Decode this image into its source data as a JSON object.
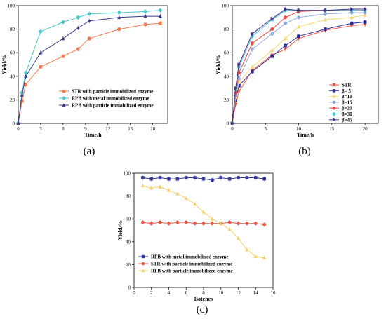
{
  "chart_data": [
    {
      "panel_label": "(a)",
      "type": "line",
      "xlabel": "Time/h",
      "ylabel": "Yield/%",
      "xlim": [
        0,
        20
      ],
      "ylim": [
        0,
        100
      ],
      "xticks": [
        "0",
        "3",
        "6",
        "9",
        "12",
        "15",
        "18"
      ],
      "yticks": [
        "0",
        "20",
        "40",
        "60",
        "80",
        "100"
      ],
      "legend_position": "bottom-right",
      "series": [
        {
          "name": "STR with particle immobilized enzyme",
          "color": "#f47a4f",
          "marker": "square",
          "x": [
            0,
            0.5,
            1,
            3,
            6,
            8,
            9.5,
            13.5,
            17,
            19
          ],
          "y": [
            0,
            19,
            33,
            48,
            57,
            63,
            72,
            80,
            84,
            85
          ]
        },
        {
          "name": "RPB with metal immobilized enzyme",
          "color": "#48c8c8",
          "marker": "circle",
          "x": [
            0,
            0.5,
            1,
            3,
            6,
            8,
            9.5,
            13.5,
            17,
            19
          ],
          "y": [
            0,
            26,
            43,
            78,
            86,
            90,
            93,
            94,
            95,
            96
          ]
        },
        {
          "name": "RPB with particle immobilized enzyme",
          "color": "#3a3a8c",
          "marker": "triangle",
          "x": [
            0,
            0.5,
            1,
            3,
            6,
            8,
            9.5,
            13.5,
            17,
            19
          ],
          "y": [
            0,
            24,
            40,
            60,
            72,
            81,
            87,
            90,
            91,
            91
          ]
        }
      ]
    },
    {
      "panel_label": "(b)",
      "type": "line",
      "xlabel": "Time/h",
      "ylabel": "Yield/%",
      "xlim": [
        0,
        22
      ],
      "ylim": [
        0,
        100
      ],
      "xticks": [
        "0",
        "5",
        "10",
        "15",
        "20"
      ],
      "yticks": [
        "0",
        "20",
        "40",
        "60",
        "80",
        "100"
      ],
      "legend_position": "bottom-right",
      "series": [
        {
          "name": "STR",
          "color": "#f05a46",
          "marker": "triangle-down",
          "x": [
            0,
            0.5,
            1,
            3,
            6,
            8,
            10,
            14,
            18,
            20
          ],
          "y": [
            0,
            16,
            27,
            45,
            58,
            63,
            72,
            79,
            83,
            84
          ]
        },
        {
          "name": "β= 5",
          "color": "#2b2b9a",
          "marker": "square",
          "x": [
            0,
            0.5,
            1,
            3,
            6,
            8,
            10,
            14,
            18,
            20
          ],
          "y": [
            0,
            20,
            32,
            44,
            57,
            66,
            74,
            80,
            85,
            86
          ]
        },
        {
          "name": "β=10",
          "color": "#f5d76e",
          "marker": "triangle",
          "x": [
            0,
            0.5,
            1,
            3,
            6,
            8,
            10,
            14,
            18,
            20
          ],
          "y": [
            0,
            22,
            35,
            48,
            62,
            72,
            82,
            88,
            90,
            92
          ]
        },
        {
          "name": "β=15",
          "color": "#8fa8e0",
          "marker": "circle",
          "x": [
            0,
            0.5,
            1,
            3,
            6,
            8,
            10,
            14,
            18,
            20
          ],
          "y": [
            0,
            24,
            38,
            63,
            76,
            85,
            90,
            93,
            94,
            94
          ]
        },
        {
          "name": "β=20",
          "color": "#e8443a",
          "marker": "circle",
          "x": [
            0,
            0.5,
            1,
            3,
            6,
            8,
            10,
            14,
            18,
            20
          ],
          "y": [
            0,
            26,
            43,
            68,
            80,
            90,
            95,
            96,
            96,
            96
          ]
        },
        {
          "name": "β=30",
          "color": "#3fc0d0",
          "marker": "circle",
          "x": [
            0,
            0.5,
            1,
            3,
            6,
            8,
            10,
            14,
            18,
            20
          ],
          "y": [
            0,
            29,
            48,
            74,
            88,
            96,
            96,
            96,
            96,
            96
          ]
        },
        {
          "name": "β=45",
          "color": "#4a2a8a",
          "marker": "triangle-right",
          "x": [
            0,
            0.5,
            1,
            3,
            6,
            8,
            10,
            14,
            18,
            20
          ],
          "y": [
            0,
            30,
            50,
            76,
            89,
            97,
            96,
            96,
            97,
            97
          ]
        }
      ]
    },
    {
      "panel_label": "(c)",
      "type": "line",
      "xlabel": "Batches",
      "ylabel": "Yield/%",
      "xlim": [
        0,
        16
      ],
      "ylim": [
        0,
        100
      ],
      "xticks": [
        "0",
        "2",
        "4",
        "6",
        "8",
        "10",
        "12",
        "14",
        "16"
      ],
      "yticks": [
        "0",
        "20",
        "40",
        "60",
        "80",
        "100"
      ],
      "legend_position": "bottom-left",
      "series": [
        {
          "name": "RPB with metal immobilized enzyme",
          "color": "#3636a0",
          "marker": "square",
          "x": [
            1,
            2,
            3,
            4,
            5,
            6,
            7,
            8,
            9,
            10,
            11,
            12,
            13,
            14,
            15
          ],
          "y": [
            96,
            95,
            96,
            95,
            95,
            96,
            96,
            95,
            94,
            96,
            95,
            96,
            96,
            96,
            95
          ]
        },
        {
          "name": "STR with particle immobilized enzyme",
          "color": "#f05a46",
          "marker": "circle",
          "x": [
            1,
            2,
            3,
            4,
            5,
            6,
            7,
            8,
            9,
            10,
            11,
            12,
            13,
            14,
            15
          ],
          "y": [
            57,
            56,
            57,
            56,
            57,
            57,
            56,
            56,
            56,
            56,
            57,
            56,
            56,
            56,
            55
          ]
        },
        {
          "name": "RPB with particle immobilized enzyme",
          "color": "#f5d06b",
          "marker": "triangle",
          "x": [
            1,
            2,
            3,
            4,
            5,
            6,
            7,
            8,
            9,
            10,
            11,
            12,
            13,
            14,
            15
          ],
          "y": [
            89,
            87,
            88,
            85,
            82,
            78,
            73,
            66,
            60,
            56,
            51,
            43,
            33,
            27,
            26
          ]
        }
      ]
    }
  ]
}
